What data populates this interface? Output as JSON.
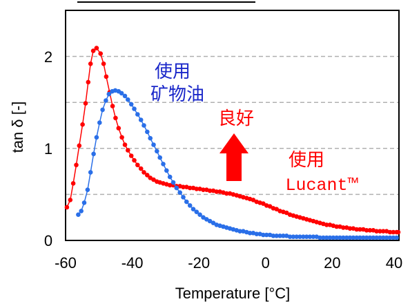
{
  "chart_data": {
    "type": "scatter",
    "xlabel": "Temperature [°C]",
    "ylabel": "tan δ [-]",
    "xlim": [
      -60,
      40
    ],
    "ylim": [
      0,
      2.5
    ],
    "x_ticks": [
      "-60",
      "-40",
      "-20",
      "0",
      "20",
      "40"
    ],
    "y_ticks": [
      "0",
      "1",
      "2"
    ],
    "grid": "horizontal dashed",
    "series": [
      {
        "color": "#ff0000",
        "points": [
          [
            -59.6,
            0.36
          ],
          [
            -58.6,
            0.44
          ],
          [
            -57.7,
            0.62
          ],
          [
            -56.8,
            0.82
          ],
          [
            -55.9,
            1.03
          ],
          [
            -54.9,
            1.26
          ],
          [
            -54.0,
            1.49
          ],
          [
            -53.2,
            1.72
          ],
          [
            -52.5,
            1.92
          ],
          [
            -51.7,
            2.06
          ],
          [
            -50.7,
            2.09
          ],
          [
            -49.5,
            2.03
          ],
          [
            -48.6,
            1.92
          ],
          [
            -47.8,
            1.78
          ],
          [
            -46.8,
            1.61
          ],
          [
            -45.9,
            1.46
          ],
          [
            -45.0,
            1.33
          ],
          [
            -44.1,
            1.22
          ],
          [
            -43.1,
            1.12
          ],
          [
            -42.2,
            1.04
          ],
          [
            -41.3,
            0.98
          ],
          [
            -40.3,
            0.92
          ],
          [
            -39.4,
            0.87
          ],
          [
            -38.4,
            0.82
          ],
          [
            -37.4,
            0.78
          ],
          [
            -36.5,
            0.74
          ],
          [
            -35.5,
            0.71
          ],
          [
            -34.6,
            0.68
          ],
          [
            -33.6,
            0.66
          ],
          [
            -32.6,
            0.64
          ],
          [
            -31.7,
            0.63
          ],
          [
            -30.7,
            0.62
          ],
          [
            -29.7,
            0.61
          ],
          [
            -28.7,
            0.6
          ],
          [
            -27.7,
            0.6
          ],
          [
            -26.7,
            0.59
          ],
          [
            -25.7,
            0.59
          ],
          [
            -24.7,
            0.58
          ],
          [
            -23.7,
            0.58
          ],
          [
            -22.7,
            0.57
          ],
          [
            -21.7,
            0.57
          ],
          [
            -20.7,
            0.56
          ],
          [
            -19.7,
            0.56
          ],
          [
            -18.7,
            0.55
          ],
          [
            -17.7,
            0.55
          ],
          [
            -16.7,
            0.54
          ],
          [
            -15.7,
            0.54
          ],
          [
            -14.7,
            0.53
          ],
          [
            -13.7,
            0.53
          ],
          [
            -12.7,
            0.52
          ],
          [
            -11.7,
            0.51
          ],
          [
            -10.7,
            0.51
          ],
          [
            -9.7,
            0.5
          ],
          [
            -8.7,
            0.49
          ],
          [
            -7.7,
            0.48
          ],
          [
            -6.7,
            0.47
          ],
          [
            -5.7,
            0.46
          ],
          [
            -4.7,
            0.45
          ],
          [
            -3.7,
            0.44
          ],
          [
            -2.7,
            0.42
          ],
          [
            -1.7,
            0.41
          ],
          [
            -0.7,
            0.4
          ],
          [
            0.3,
            0.38
          ],
          [
            1.3,
            0.37
          ],
          [
            2.3,
            0.35
          ],
          [
            3.3,
            0.34
          ],
          [
            4.3,
            0.32
          ],
          [
            5.3,
            0.31
          ],
          [
            6.3,
            0.3
          ],
          [
            7.3,
            0.28
          ],
          [
            8.3,
            0.27
          ],
          [
            9.3,
            0.26
          ],
          [
            10.3,
            0.25
          ],
          [
            11.3,
            0.24
          ],
          [
            12.3,
            0.23
          ],
          [
            13.3,
            0.22
          ],
          [
            14.3,
            0.21
          ],
          [
            15.3,
            0.2
          ],
          [
            16.3,
            0.19
          ],
          [
            17.3,
            0.18
          ],
          [
            18.3,
            0.17
          ],
          [
            19.3,
            0.17
          ],
          [
            20.3,
            0.16
          ],
          [
            21.3,
            0.15
          ],
          [
            22.3,
            0.15
          ],
          [
            23.3,
            0.14
          ],
          [
            24.3,
            0.14
          ],
          [
            25.3,
            0.13
          ],
          [
            26.3,
            0.13
          ],
          [
            27.3,
            0.12
          ],
          [
            28.3,
            0.12
          ],
          [
            29.3,
            0.12
          ],
          [
            30.3,
            0.11
          ],
          [
            31.3,
            0.11
          ],
          [
            32.3,
            0.11
          ],
          [
            33.3,
            0.1
          ],
          [
            34.3,
            0.1
          ],
          [
            35.3,
            0.1
          ],
          [
            36.3,
            0.1
          ],
          [
            37.3,
            0.09
          ],
          [
            38.3,
            0.09
          ],
          [
            39.3,
            0.09
          ],
          [
            39.8,
            0.09
          ]
        ]
      },
      {
        "color": "#2a6fe8",
        "points": [
          [
            -56.2,
            0.28
          ],
          [
            -55.3,
            0.32
          ],
          [
            -54.4,
            0.41
          ],
          [
            -53.4,
            0.55
          ],
          [
            -52.5,
            0.74
          ],
          [
            -51.6,
            0.94
          ],
          [
            -50.7,
            1.12
          ],
          [
            -49.8,
            1.28
          ],
          [
            -48.9,
            1.42
          ],
          [
            -47.9,
            1.52
          ],
          [
            -47.0,
            1.59
          ],
          [
            -46.0,
            1.62
          ],
          [
            -45.1,
            1.63
          ],
          [
            -44.1,
            1.62
          ],
          [
            -43.2,
            1.6
          ],
          [
            -42.2,
            1.57
          ],
          [
            -41.3,
            1.53
          ],
          [
            -40.3,
            1.48
          ],
          [
            -39.4,
            1.43
          ],
          [
            -38.4,
            1.37
          ],
          [
            -37.4,
            1.31
          ],
          [
            -36.5,
            1.25
          ],
          [
            -35.5,
            1.18
          ],
          [
            -34.6,
            1.11
          ],
          [
            -33.6,
            1.04
          ],
          [
            -32.6,
            0.97
          ],
          [
            -31.7,
            0.9
          ],
          [
            -30.7,
            0.83
          ],
          [
            -29.7,
            0.76
          ],
          [
            -28.7,
            0.69
          ],
          [
            -27.7,
            0.63
          ],
          [
            -26.7,
            0.57
          ],
          [
            -25.7,
            0.52
          ],
          [
            -24.7,
            0.47
          ],
          [
            -23.7,
            0.42
          ],
          [
            -22.7,
            0.38
          ],
          [
            -21.7,
            0.34
          ],
          [
            -20.7,
            0.31
          ],
          [
            -19.7,
            0.28
          ],
          [
            -18.7,
            0.25
          ],
          [
            -17.7,
            0.23
          ],
          [
            -16.7,
            0.21
          ],
          [
            -15.7,
            0.19
          ],
          [
            -14.7,
            0.17
          ],
          [
            -13.7,
            0.16
          ],
          [
            -12.7,
            0.15
          ],
          [
            -11.7,
            0.14
          ],
          [
            -10.7,
            0.13
          ],
          [
            -9.7,
            0.12
          ],
          [
            -8.7,
            0.11
          ],
          [
            -7.7,
            0.1
          ],
          [
            -6.7,
            0.1
          ],
          [
            -5.7,
            0.09
          ],
          [
            -4.7,
            0.08
          ],
          [
            -3.7,
            0.08
          ],
          [
            -2.7,
            0.07
          ],
          [
            -1.7,
            0.07
          ],
          [
            -0.7,
            0.06
          ],
          [
            0.3,
            0.06
          ],
          [
            1.3,
            0.06
          ],
          [
            2.3,
            0.05
          ],
          [
            3.3,
            0.05
          ],
          [
            4.3,
            0.05
          ],
          [
            5.3,
            0.05
          ],
          [
            6.3,
            0.05
          ],
          [
            7.3,
            0.04
          ],
          [
            8.3,
            0.04
          ],
          [
            9.3,
            0.04
          ],
          [
            10.3,
            0.04
          ],
          [
            11.3,
            0.04
          ],
          [
            12.3,
            0.04
          ],
          [
            13.3,
            0.04
          ],
          [
            14.3,
            0.04
          ],
          [
            15.3,
            0.04
          ],
          [
            16.3,
            0.03
          ],
          [
            17.3,
            0.03
          ],
          [
            18.3,
            0.03
          ],
          [
            19.3,
            0.03
          ],
          [
            20.3,
            0.03
          ],
          [
            21.3,
            0.03
          ],
          [
            22.3,
            0.03
          ],
          [
            23.3,
            0.03
          ],
          [
            24.3,
            0.03
          ],
          [
            25.3,
            0.03
          ],
          [
            26.3,
            0.03
          ],
          [
            27.3,
            0.03
          ],
          [
            28.3,
            0.03
          ],
          [
            29.3,
            0.03
          ],
          [
            30.3,
            0.03
          ],
          [
            31.3,
            0.03
          ],
          [
            32.3,
            0.03
          ],
          [
            33.3,
            0.03
          ],
          [
            34.3,
            0.03
          ],
          [
            35.3,
            0.03
          ],
          [
            36.3,
            0.03
          ],
          [
            37.3,
            0.03
          ],
          [
            38.3,
            0.03
          ],
          [
            39.3,
            0.03
          ]
        ]
      }
    ],
    "annotations": {
      "mineral_oil_line1": "使用",
      "mineral_oil_line2": "矿物油",
      "mineral_oil_color": "#1a27c9",
      "improvement": "良好",
      "improvement_color": "#ff0000",
      "lucant_line1": "使用",
      "lucant_line2": "Lucant™",
      "lucant_color": "#ff0000",
      "arrow_color": "#ff0000"
    }
  }
}
